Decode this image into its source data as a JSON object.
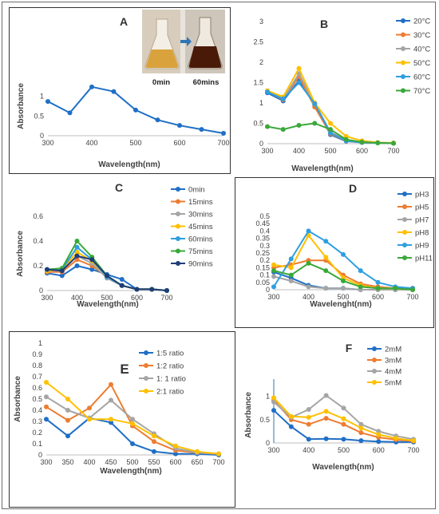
{
  "colors": {
    "blue": "#1f6fc6",
    "orange": "#ed7d31",
    "gray": "#a5a5a5",
    "yellow": "#ffc000",
    "lightblue": "#2e9fe0",
    "green": "#3aa83a",
    "navy": "#1f3d78"
  },
  "inset": {
    "left_label": "0min",
    "right_label": "60mins"
  },
  "chart_data": [
    {
      "id": "A",
      "type": "line",
      "panel_letter": "A",
      "xlabel": "Wavelength(nm)",
      "ylabel": "Absorbance",
      "xlim": [
        300,
        700
      ],
      "ylim": [
        0,
        1.5
      ],
      "xticks": [
        300,
        400,
        500,
        600,
        700
      ],
      "yticks": [
        0,
        0.5,
        1
      ],
      "ytick_labels": [
        "0",
        "0.5",
        "1"
      ],
      "series": [
        {
          "color": "#1f6fc6",
          "x": [
            300,
            350,
            400,
            450,
            500,
            550,
            600,
            650,
            700
          ],
          "y": [
            0.87,
            0.58,
            1.24,
            1.12,
            0.65,
            0.4,
            0.26,
            0.16,
            0.06
          ]
        }
      ]
    },
    {
      "id": "B",
      "type": "line",
      "panel_letter": "B",
      "xlabel": "Wavelength(nm)",
      "ylabel": "",
      "xlim": [
        300,
        700
      ],
      "ylim": [
        0,
        3
      ],
      "xticks": [
        300,
        400,
        500,
        600,
        700
      ],
      "yticks": [
        0,
        0.5,
        1,
        1.5,
        2,
        2.5,
        3
      ],
      "ytick_labels": [
        "0",
        "0.5",
        "1",
        "1.5",
        "2",
        "2.5",
        "3"
      ],
      "legend": "right",
      "series": [
        {
          "name": "20°C",
          "color": "#1f6fc6",
          "x": [
            300,
            350,
            400,
            450,
            500,
            550,
            600,
            650,
            700
          ],
          "y": [
            1.25,
            1.05,
            1.55,
            0.95,
            0.22,
            0.06,
            0.03,
            0.02,
            0.01
          ]
        },
        {
          "name": "30°C",
          "color": "#ed7d31",
          "x": [
            300,
            350,
            400,
            450,
            500,
            550,
            600,
            650,
            700
          ],
          "y": [
            1.28,
            1.08,
            1.65,
            0.9,
            0.24,
            0.07,
            0.03,
            0.02,
            0.01
          ]
        },
        {
          "name": "40°C",
          "color": "#a5a5a5",
          "x": [
            300,
            350,
            400,
            450,
            500,
            550,
            600,
            650,
            700
          ],
          "y": [
            1.3,
            1.1,
            1.72,
            1.0,
            0.28,
            0.08,
            0.04,
            0.02,
            0.01
          ]
        },
        {
          "name": "50°C",
          "color": "#ffc000",
          "x": [
            300,
            350,
            400,
            450,
            500,
            550,
            600,
            650,
            700
          ],
          "y": [
            1.3,
            1.15,
            1.85,
            1.0,
            0.5,
            0.18,
            0.07,
            0.03,
            0.02
          ]
        },
        {
          "name": "60°C",
          "color": "#2e9fe0",
          "x": [
            300,
            350,
            400,
            450,
            500,
            550,
            600,
            650,
            700
          ],
          "y": [
            1.27,
            1.1,
            1.5,
            0.98,
            0.26,
            0.07,
            0.03,
            0.02,
            0.01
          ]
        },
        {
          "name": "70°C",
          "color": "#3aa83a",
          "x": [
            300,
            350,
            400,
            450,
            500,
            550,
            600,
            650,
            700
          ],
          "y": [
            0.42,
            0.35,
            0.45,
            0.5,
            0.35,
            0.1,
            0.04,
            0.02,
            0.01
          ]
        }
      ]
    },
    {
      "id": "C",
      "type": "line",
      "panel_letter": "C",
      "xlabel": "Wavelength(nm)",
      "ylabel": "Absorbance",
      "xlim": [
        300,
        700
      ],
      "ylim": [
        0,
        0.6
      ],
      "xticks": [
        300,
        400,
        500,
        600,
        700
      ],
      "yticks": [
        0,
        0.2,
        0.4,
        0.6
      ],
      "ytick_labels": [
        "0",
        "0.2",
        "0.4",
        "0.6"
      ],
      "legend": "right",
      "series": [
        {
          "name": "0min",
          "color": "#1f6fc6",
          "x": [
            300,
            350,
            400,
            450,
            500,
            550,
            600,
            650,
            700
          ],
          "y": [
            0.14,
            0.12,
            0.2,
            0.17,
            0.13,
            0.09,
            0.01,
            0.01,
            0.0
          ]
        },
        {
          "name": "15mins",
          "color": "#ed7d31",
          "x": [
            300,
            350,
            400,
            450,
            500,
            550,
            600,
            650,
            700
          ],
          "y": [
            0.15,
            0.15,
            0.25,
            0.2,
            0.11,
            0.04,
            0.01,
            0.01,
            0.0
          ]
        },
        {
          "name": "30mins",
          "color": "#a5a5a5",
          "x": [
            300,
            350,
            400,
            450,
            500,
            550,
            600,
            650,
            700
          ],
          "y": [
            0.16,
            0.16,
            0.28,
            0.22,
            0.1,
            0.04,
            0.01,
            0.01,
            0.0
          ]
        },
        {
          "name": "45mins",
          "color": "#ffc000",
          "x": [
            300,
            350,
            400,
            450,
            500,
            550,
            600,
            650,
            700
          ],
          "y": [
            0.16,
            0.17,
            0.31,
            0.24,
            0.11,
            0.04,
            0.01,
            0.01,
            0.0
          ]
        },
        {
          "name": "60mins",
          "color": "#2e9fe0",
          "x": [
            300,
            350,
            400,
            450,
            500,
            550,
            600,
            650,
            700
          ],
          "y": [
            0.17,
            0.17,
            0.35,
            0.25,
            0.11,
            0.04,
            0.01,
            0.01,
            0.0
          ]
        },
        {
          "name": "75mins",
          "color": "#3aa83a",
          "x": [
            300,
            350,
            400,
            450,
            500,
            550,
            600,
            650,
            700
          ],
          "y": [
            0.17,
            0.18,
            0.4,
            0.27,
            0.12,
            0.04,
            0.01,
            0.01,
            0.0
          ]
        },
        {
          "name": "90mins",
          "color": "#1f3d78",
          "x": [
            300,
            350,
            400,
            450,
            500,
            550,
            600,
            650,
            700
          ],
          "y": [
            0.17,
            0.16,
            0.28,
            0.25,
            0.12,
            0.04,
            0.01,
            0.01,
            0.0
          ]
        }
      ]
    },
    {
      "id": "D",
      "type": "line",
      "panel_letter": "D",
      "xlabel": "Wavelenght(nm)",
      "ylabel": "",
      "xlim": [
        300,
        700
      ],
      "ylim": [
        0,
        0.5
      ],
      "xticks": [
        300,
        400,
        500,
        600,
        700
      ],
      "yticks": [
        0,
        0.05,
        0.1,
        0.15,
        0.2,
        0.25,
        0.3,
        0.35,
        0.4,
        0.45,
        0.5
      ],
      "ytick_labels": [
        "0",
        "0.05",
        "0.1",
        "0.15",
        "0.2",
        "0.25",
        "0.3",
        "0.35",
        "0.4",
        "0.45",
        "0.5"
      ],
      "legend": "right",
      "series": [
        {
          "name": "pH3",
          "color": "#1f6fc6",
          "x": [
            300,
            350,
            400,
            450,
            500,
            550,
            600,
            650,
            700
          ],
          "y": [
            0.12,
            0.08,
            0.03,
            0.01,
            0.01,
            0.0,
            0.0,
            0.0,
            0.0
          ]
        },
        {
          "name": "pH5",
          "color": "#ed7d31",
          "x": [
            300,
            350,
            400,
            450,
            500,
            550,
            600,
            650,
            700
          ],
          "y": [
            0.15,
            0.17,
            0.2,
            0.2,
            0.1,
            0.04,
            0.02,
            0.01,
            0.01
          ]
        },
        {
          "name": "pH7",
          "color": "#a5a5a5",
          "x": [
            300,
            350,
            400,
            450,
            500,
            550,
            600,
            650,
            700
          ],
          "y": [
            0.09,
            0.06,
            0.02,
            0.01,
            0.01,
            0.0,
            0.0,
            0.0,
            0.0
          ]
        },
        {
          "name": "pH8",
          "color": "#ffc000",
          "x": [
            300,
            350,
            400,
            450,
            500,
            550,
            600,
            650,
            700
          ],
          "y": [
            0.17,
            0.15,
            0.37,
            0.22,
            0.08,
            0.03,
            0.01,
            0.01,
            0.0
          ]
        },
        {
          "name": "pH9",
          "color": "#2e9fe0",
          "x": [
            300,
            350,
            400,
            450,
            500,
            550,
            600,
            650,
            700
          ],
          "y": [
            0.02,
            0.21,
            0.4,
            0.33,
            0.24,
            0.13,
            0.05,
            0.02,
            0.01
          ]
        },
        {
          "name": "pH11",
          "color": "#3aa83a",
          "x": [
            300,
            350,
            400,
            450,
            500,
            550,
            600,
            650,
            700
          ],
          "y": [
            0.13,
            0.1,
            0.18,
            0.13,
            0.06,
            0.02,
            0.01,
            0.01,
            0.0
          ]
        }
      ]
    },
    {
      "id": "E",
      "type": "line",
      "panel_letter": "E",
      "xlabel": "Wavelength(nm)",
      "ylabel": "Absorbance",
      "xlim": [
        300,
        700
      ],
      "ylim": [
        0,
        1
      ],
      "xticks": [
        300,
        350,
        400,
        450,
        500,
        550,
        600,
        650,
        700
      ],
      "yticks": [
        0,
        0.1,
        0.2,
        0.3,
        0.4,
        0.5,
        0.6,
        0.7,
        0.8,
        0.9,
        1
      ],
      "ytick_labels": [
        "0",
        "0.1",
        "0.2",
        "0.3",
        "0.4",
        "0.5",
        "0.6",
        "0.7",
        "0.8",
        "0.9",
        "1"
      ],
      "legend": "right",
      "series": [
        {
          "name": "1:5 ratio",
          "color": "#1f6fc6",
          "x": [
            300,
            350,
            400,
            450,
            500,
            550,
            600,
            650,
            700
          ],
          "y": [
            0.32,
            0.17,
            0.33,
            0.29,
            0.1,
            0.03,
            0.01,
            0.01,
            0.0
          ]
        },
        {
          "name": "1:2 ratio",
          "color": "#ed7d31",
          "x": [
            300,
            350,
            400,
            450,
            500,
            550,
            600,
            650,
            700
          ],
          "y": [
            0.43,
            0.31,
            0.42,
            0.63,
            0.26,
            0.12,
            0.04,
            0.02,
            0.01
          ]
        },
        {
          "name": "1: 1 ratio",
          "color": "#a5a5a5",
          "x": [
            300,
            350,
            400,
            450,
            500,
            550,
            600,
            650,
            700
          ],
          "y": [
            0.52,
            0.4,
            0.33,
            0.49,
            0.32,
            0.19,
            0.06,
            0.02,
            0.01
          ]
        },
        {
          "name": "2:1 ratio",
          "color": "#ffc000",
          "x": [
            300,
            350,
            400,
            450,
            500,
            550,
            600,
            650,
            700
          ],
          "y": [
            0.65,
            0.5,
            0.32,
            0.32,
            0.28,
            0.17,
            0.08,
            0.03,
            0.01
          ]
        }
      ]
    },
    {
      "id": "F",
      "type": "line",
      "panel_letter": "F",
      "xlabel": "Wavelength(nm)",
      "ylabel": "Absorbance",
      "xlim": [
        300,
        700
      ],
      "ylim": [
        0,
        1.2
      ],
      "xticks": [
        300,
        400,
        500,
        600,
        700
      ],
      "yticks": [
        0,
        0.5,
        1
      ],
      "ytick_labels": [
        "0",
        "0.5",
        "1"
      ],
      "legend": "right",
      "series": [
        {
          "name": "2mM",
          "color": "#1f6fc6",
          "x": [
            300,
            350,
            400,
            450,
            500,
            550,
            600,
            650,
            700
          ],
          "y": [
            0.7,
            0.35,
            0.08,
            0.09,
            0.08,
            0.05,
            0.03,
            0.02,
            0.02
          ]
        },
        {
          "name": "3mM",
          "color": "#ed7d31",
          "x": [
            300,
            350,
            400,
            450,
            500,
            550,
            600,
            650,
            700
          ],
          "y": [
            0.92,
            0.5,
            0.4,
            0.53,
            0.4,
            0.22,
            0.12,
            0.07,
            0.04
          ]
        },
        {
          "name": "4mM",
          "color": "#a5a5a5",
          "x": [
            300,
            350,
            400,
            450,
            500,
            550,
            600,
            650,
            700
          ],
          "y": [
            0.88,
            0.55,
            0.72,
            1.02,
            0.75,
            0.4,
            0.25,
            0.15,
            0.08
          ]
        },
        {
          "name": "5mM",
          "color": "#ffc000",
          "x": [
            300,
            350,
            400,
            450,
            500,
            550,
            600,
            650,
            700
          ],
          "y": [
            0.97,
            0.57,
            0.55,
            0.68,
            0.52,
            0.32,
            0.18,
            0.1,
            0.05
          ]
        }
      ]
    }
  ]
}
